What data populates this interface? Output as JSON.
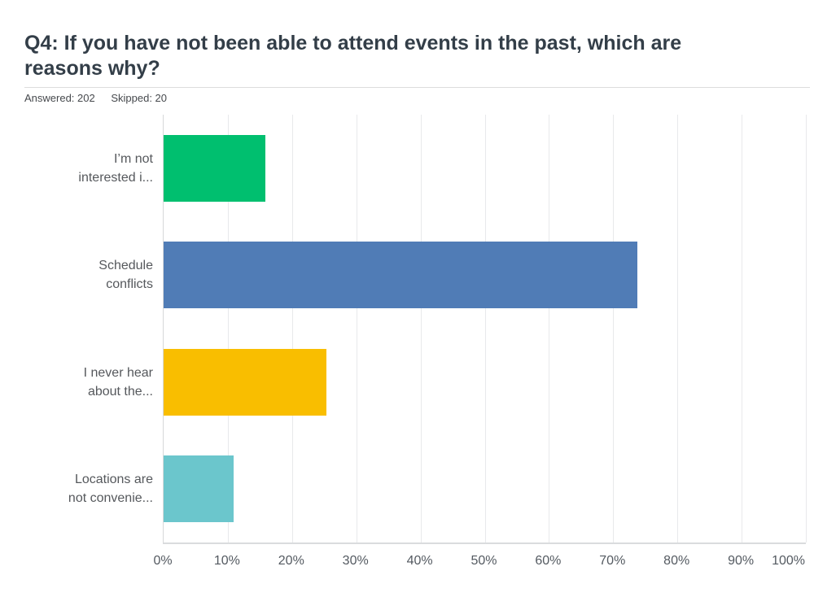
{
  "header": {
    "title": "Q4: If you have not been able to attend events in the past, which are\nreasons why?",
    "answered": "Answered: 202",
    "skipped": "Skipped: 20"
  },
  "chart_data": {
    "type": "bar",
    "orientation": "horizontal",
    "title": "Q4: If you have not been able to attend events in the past, which are reasons why?",
    "categories": [
      "I’m not interested i...",
      "Schedule conflicts",
      "I never hear about the...",
      "Locations are not convenie..."
    ],
    "category_display": [
      "I’m not\ninterested i...",
      "Schedule\nconflicts",
      "I never hear\nabout the...",
      "Locations are\nnot convenie..."
    ],
    "values": [
      15.8,
      73.8,
      25.3,
      10.9
    ],
    "unit": "%",
    "bar_colors": [
      "#00BF6F",
      "#507CB6",
      "#F9BE00",
      "#6BC6CC"
    ],
    "x_ticks": [
      "0%",
      "10%",
      "20%",
      "30%",
      "40%",
      "50%",
      "60%",
      "70%",
      "80%",
      "90%",
      "100%"
    ],
    "xlim": [
      0,
      100
    ],
    "xlabel": "",
    "ylabel": "",
    "grid": true,
    "grid_color": "#E8E9EB",
    "legend": false
  }
}
